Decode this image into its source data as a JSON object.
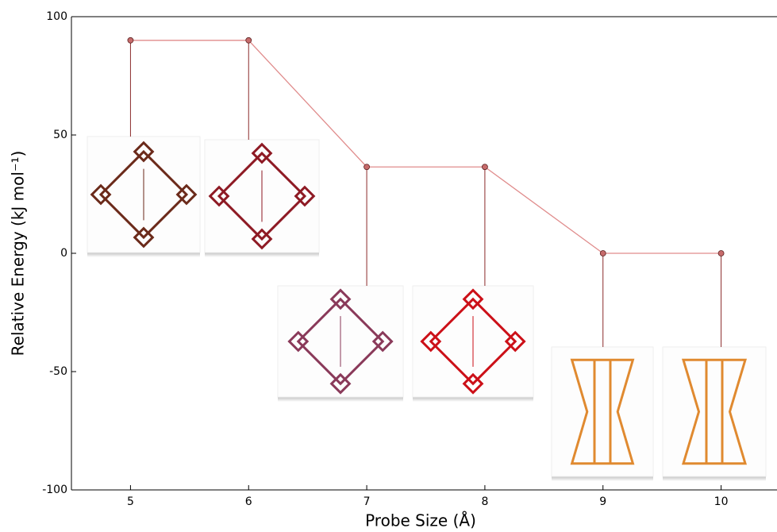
{
  "chart_data": {
    "type": "line",
    "x": [
      5,
      6,
      7,
      8,
      9,
      10
    ],
    "values": [
      90,
      90,
      36.5,
      36.5,
      0,
      0
    ],
    "color": "#e08c8c",
    "marker_color": "#c76b6b",
    "drop_color": "#8b2a2a",
    "xlim": [
      4.5,
      10.5
    ],
    "xticks": [
      5,
      6,
      7,
      8,
      9,
      10
    ],
    "ylim": [
      -100,
      100
    ],
    "yticks": [
      -100,
      -50,
      0,
      50,
      100
    ],
    "xlabel": "Probe Size (Å)",
    "ylabel": "Relative Energy (kJ mol⁻¹)"
  }
}
